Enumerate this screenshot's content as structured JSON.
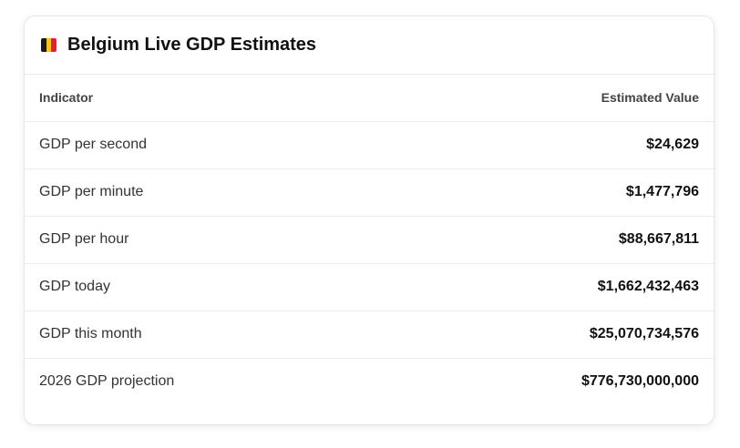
{
  "header": {
    "title": "Belgium Live GDP Estimates"
  },
  "table": {
    "columns": [
      "Indicator",
      "Estimated Value"
    ],
    "rows": [
      [
        "GDP per second",
        "$24,629"
      ],
      [
        "GDP per minute",
        "$1,477,796"
      ],
      [
        "GDP per hour",
        "$88,667,811"
      ],
      [
        "GDP today",
        "$1,662,432,463"
      ],
      [
        "GDP this month",
        "$25,070,734,576"
      ],
      [
        "2026 GDP projection",
        "$776,730,000,000"
      ]
    ]
  }
}
